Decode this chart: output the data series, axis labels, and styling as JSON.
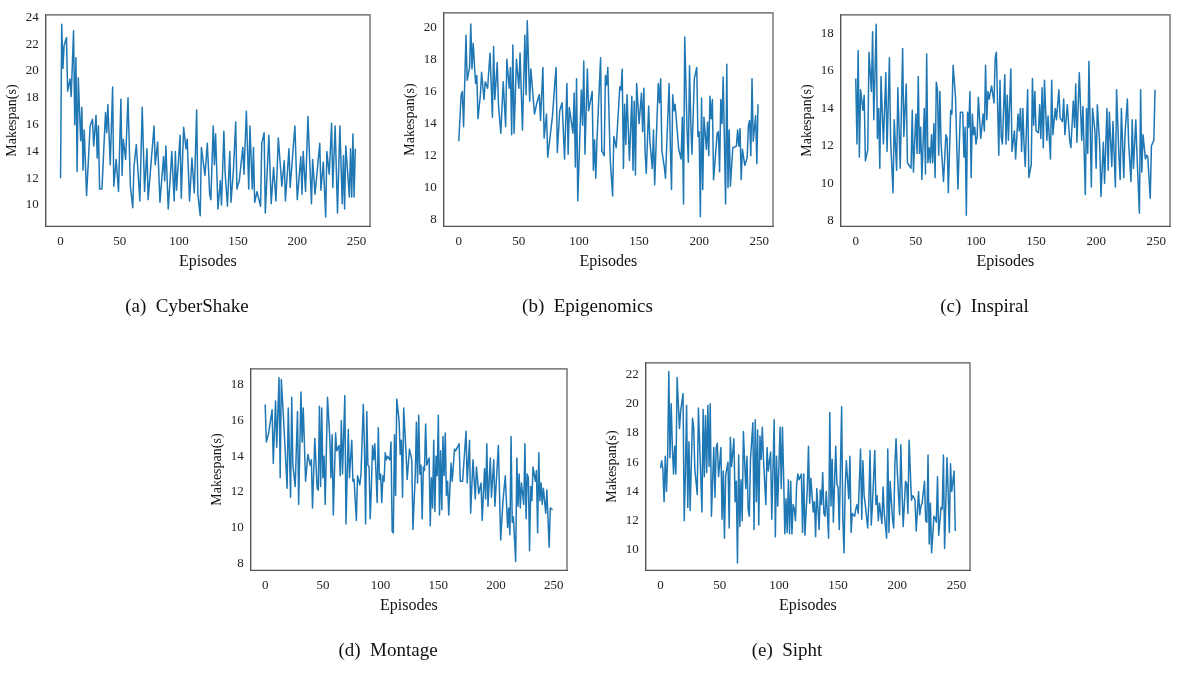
{
  "chart_data": [
    {
      "type": "line",
      "title": "(a)  CyberShake",
      "xlabel": "Episodes",
      "ylabel": "Makespan(s)",
      "color": "#1f77b4",
      "xlim": [
        -12.45,
        261.45
      ],
      "xticks": [
        0,
        50,
        100,
        150,
        200,
        250
      ],
      "ylim": [
        8.4,
        24.2
      ],
      "yticks": [
        10,
        12,
        14,
        16,
        18,
        20,
        22,
        24
      ],
      "grid": false,
      "legend": false,
      "x": [
        0,
        1,
        2,
        3,
        5,
        6,
        8,
        9,
        11,
        12,
        13,
        14,
        15,
        17,
        18,
        19,
        20,
        22,
        25,
        27,
        28,
        30,
        31,
        32,
        33,
        35,
        38,
        39,
        40,
        42,
        44,
        45,
        47,
        49,
        51,
        52,
        53,
        55,
        57,
        59,
        61,
        62,
        64,
        67,
        69,
        71,
        73,
        74,
        79,
        80,
        82,
        84,
        87,
        88,
        89,
        91,
        93,
        94,
        96,
        97,
        98,
        101,
        102,
        104,
        106,
        107,
        109,
        111,
        113,
        115,
        116,
        118,
        119,
        122,
        124,
        126,
        127,
        129,
        130,
        131,
        133,
        135,
        136,
        138,
        139,
        141,
        143,
        144,
        146,
        148,
        149,
        151,
        154,
        155,
        157,
        159,
        160,
        162,
        163,
        164,
        166,
        169,
        170,
        172,
        173,
        176,
        178,
        180,
        182,
        184,
        187,
        189,
        190,
        193,
        194,
        198,
        200,
        203,
        204,
        205,
        207,
        209,
        212,
        213,
        215,
        219,
        220,
        222,
        224,
        225,
        227,
        229,
        230,
        232,
        234,
        236,
        238,
        239,
        240,
        241,
        244,
        245,
        246,
        247,
        248,
        249
      ],
      "values": [
        12,
        23.5,
        20.2,
        21.9,
        22.5,
        18.5,
        19.4,
        18.1,
        23,
        16,
        21,
        12.5,
        19.5,
        14.8,
        17.3,
        12.6,
        15.6,
        10.7,
        15.9,
        16.4,
        14.4,
        16.7,
        13.5,
        15.9,
        11.2,
        11.2,
        16.9,
        15.4,
        17.5,
        13,
        18.8,
        11.4,
        13.4,
        11,
        17.9,
        12.2,
        14.9,
        13.4,
        18,
        11.4,
        9.8,
        12.8,
        14.5,
        10.3,
        17.3,
        11,
        14.2,
        10.4,
        15.9,
        13,
        14.7,
        10.2,
        13.6,
        11.8,
        14.4,
        9.7,
        12.5,
        14,
        10.3,
        14,
        11.1,
        15.2,
        10.5,
        15.8,
        14.2,
        14.9,
        10.3,
        13.5,
        10.9,
        17.1,
        10.8,
        9.2,
        14.3,
        12.2,
        14.6,
        10.8,
        10.4,
        15.9,
        13,
        15.3,
        9.7,
        11.8,
        10,
        15.5,
        12.5,
        9.9,
        14,
        10.2,
        12.5,
        16.2,
        11.2,
        11.8,
        14.3,
        12.3,
        17,
        11.2,
        15.9,
        11.2,
        14.3,
        10.2,
        11,
        9.9,
        14.6,
        15.4,
        9.4,
        15.2,
        10.1,
        12.8,
        10.3,
        15,
        11.4,
        13.3,
        10.3,
        14.2,
        11.3,
        15.9,
        10.4,
        13.6,
        10.8,
        14,
        11,
        16.6,
        10.1,
        13.4,
        10.8,
        14.6,
        11.1,
        13.2,
        9.1,
        14,
        12.3,
        16.1,
        11.3,
        15.9,
        9.4,
        15.9,
        10.1,
        13.7,
        9.7,
        14.4,
        10.6,
        14.2,
        10.6,
        15.3,
        10.6,
        14.2
      ]
    },
    {
      "type": "line",
      "title": "(b)  Epigenomics",
      "xlabel": "Episodes",
      "ylabel": "Makespan(s)",
      "color": "#1f77b4",
      "xlim": [
        -12.45,
        261.45
      ],
      "xticks": [
        0,
        50,
        100,
        150,
        200,
        250
      ],
      "ylim": [
        7.6,
        20.9
      ],
      "yticks": [
        8,
        10,
        12,
        14,
        16,
        18,
        20
      ],
      "grid": false,
      "legend": false,
      "x": [
        0,
        2,
        3,
        4,
        6,
        7,
        9,
        10,
        11,
        12,
        14,
        15,
        16,
        18,
        19,
        21,
        22,
        24,
        26,
        28,
        29,
        30,
        32,
        33,
        35,
        37,
        39,
        40,
        42,
        43,
        44,
        45,
        46,
        48,
        50,
        51,
        53,
        55,
        56,
        57,
        59,
        60,
        63,
        65,
        67,
        68,
        70,
        71,
        73,
        74,
        78,
        80,
        81,
        82,
        84,
        86,
        88,
        90,
        91,
        92,
        95,
        96,
        97,
        98,
        99,
        102,
        103,
        104,
        105,
        107,
        108,
        111,
        112,
        113,
        114,
        115,
        118,
        119,
        121,
        122,
        123,
        124,
        126,
        128,
        129,
        131,
        134,
        135,
        136,
        137,
        138,
        139,
        140,
        142,
        144,
        145,
        146,
        147,
        148,
        150,
        152,
        153,
        154,
        155,
        156,
        158,
        159,
        161,
        162,
        163,
        166,
        167,
        168,
        169,
        171,
        172,
        175,
        176,
        177,
        178,
        179,
        180,
        183,
        185,
        186,
        187,
        188,
        190,
        191,
        192,
        193,
        194,
        196,
        198,
        199,
        200,
        201,
        202,
        203,
        204,
        206,
        207,
        208,
        209,
        210,
        211,
        212,
        215,
        216,
        217,
        218,
        219,
        220,
        222,
        223,
        224,
        225,
        226,
        228,
        231,
        232,
        233,
        234,
        235,
        236,
        238,
        240,
        241,
        242,
        243,
        244,
        245,
        247,
        248,
        249
      ],
      "values": [
        12.9,
        15.8,
        16,
        13.8,
        19.5,
        16.7,
        17.5,
        20.2,
        17.4,
        19,
        16.5,
        17,
        14.3,
        15.8,
        17.2,
        15.5,
        16.6,
        16.2,
        18.4,
        14.4,
        18.8,
        15.5,
        17.8,
        15.2,
        13.4,
        16.6,
        13.8,
        18,
        16.2,
        17.5,
        13.3,
        18.9,
        13.4,
        18,
        16.2,
        18.4,
        13.6,
        19.5,
        15.8,
        20.4,
        15.4,
        17.4,
        14.6,
        15.3,
        15.8,
        14.2,
        17.5,
        13.1,
        14.6,
        11.9,
        14.5,
        16.6,
        17.5,
        12.2,
        14.8,
        15.3,
        11.8,
        16.5,
        12.1,
        15,
        13.4,
        15.9,
        11.3,
        16.8,
        9.2,
        16.1,
        13.9,
        17.9,
        12.1,
        17.4,
        14.8,
        16,
        11.1,
        13,
        10.6,
        13,
        18.1,
        12.3,
        12,
        17,
        16.4,
        17.5,
        11.8,
        9.5,
        13.2,
        12.5,
        16.3,
        16.1,
        17.4,
        11.2,
        15.2,
        12.7,
        15.8,
        11.7,
        15.7,
        11.1,
        15.4,
        10.8,
        16.5,
        14,
        15.9,
        13.5,
        16.2,
        12.3,
        10.9,
        15.1,
        12.9,
        11.2,
        13.6,
        10.2,
        16.5,
        15.3,
        16.8,
        12.3,
        11.3,
        10.6,
        16.5,
        12.7,
        9.9,
        15.8,
        14.8,
        15.2,
        12.4,
        11.8,
        14.4,
        9,
        19.4,
        13.5,
        11.6,
        17.6,
        14.2,
        12.1,
        16.8,
        17.5,
        13.2,
        13.5,
        8.2,
        15.6,
        9.9,
        14.4,
        12.4,
        14.1,
        12,
        15.7,
        14.3,
        15.5,
        10.5,
        13.4,
        13.5,
        11,
        15.5,
        14,
        16.9,
        9,
        17.7,
        10,
        13.6,
        10.1,
        12.5,
        12.6,
        13.6,
        12.6,
        13.7,
        10.5,
        12.4,
        11.4,
        11.9,
        13.9,
        14.2,
        12,
        16.8,
        12.9,
        14.5,
        11.5,
        15.2
      ]
    },
    {
      "type": "line",
      "title": "(c)  Inspiral",
      "xlabel": "Episodes",
      "ylabel": "Makespan(s)",
      "color": "#1f77b4",
      "xlim": [
        -12.45,
        261.45
      ],
      "xticks": [
        0,
        50,
        100,
        150,
        200,
        250
      ],
      "ylim": [
        7.7,
        19.0
      ],
      "yticks": [
        8,
        10,
        12,
        14,
        16,
        18
      ],
      "grid": false,
      "legend": false,
      "x": [
        0,
        1,
        2,
        3,
        4,
        6,
        7,
        8,
        10,
        11,
        13,
        14,
        15,
        17,
        18,
        19,
        20,
        21,
        23,
        25,
        26,
        28,
        29,
        31,
        32,
        34,
        35,
        37,
        39,
        40,
        42,
        43,
        46,
        47,
        48,
        50,
        51,
        52,
        53,
        54,
        55,
        57,
        58,
        59,
        60,
        61,
        62,
        63,
        64,
        65,
        66,
        67,
        68,
        69,
        70,
        71,
        73,
        75,
        76,
        77,
        79,
        80,
        81,
        83,
        85,
        87,
        89,
        90,
        91,
        92,
        93,
        94,
        95,
        96,
        97,
        98,
        99,
        100,
        101,
        102,
        104,
        106,
        107,
        108,
        109,
        110,
        111,
        113,
        115,
        116,
        117,
        119,
        120,
        121,
        122,
        124,
        125,
        126,
        127,
        129,
        130,
        132,
        133,
        135,
        136,
        137,
        138,
        139,
        140,
        141,
        143,
        144,
        146,
        147,
        148,
        149,
        150,
        152,
        153,
        154,
        155,
        156,
        157,
        159,
        160,
        162,
        163,
        164,
        166,
        167,
        169,
        170,
        172,
        173,
        174,
        176,
        178,
        179,
        181,
        182,
        183,
        184,
        186,
        188,
        189,
        191,
        192,
        193,
        194,
        196,
        197,
        199,
        200,
        201,
        203,
        204,
        206,
        207,
        209,
        210,
        211,
        213,
        214,
        216,
        217,
        219,
        220,
        221,
        223,
        224,
        226,
        227,
        229,
        230,
        231,
        233,
        234,
        236,
        237,
        238,
        239,
        241,
        242,
        243,
        245,
        246,
        248,
        249
      ],
      "values": [
        15.6,
        12.1,
        17.1,
        11.4,
        15,
        13.9,
        14.7,
        11.2,
        11.8,
        17,
        14.9,
        18.1,
        13.4,
        18.5,
        12.4,
        14,
        10.8,
        15.7,
        12.1,
        15.9,
        11.7,
        16.7,
        12.3,
        9.5,
        13.4,
        10.7,
        15.1,
        10.8,
        17.2,
        12.5,
        15.3,
        11.1,
        10.8,
        13.9,
        10.6,
        13.7,
        11.6,
        15.7,
        11.6,
        13,
        10.2,
        14,
        10.5,
        16.9,
        11.1,
        11.9,
        11.1,
        12.6,
        11.1,
        13.2,
        10.3,
        15.4,
        15,
        11.5,
        14.9,
        12.1,
        10.1,
        12.6,
        12.4,
        9.5,
        13.9,
        13.7,
        16.3,
        14.6,
        9.7,
        13.8,
        13.8,
        11.4,
        13,
        8.3,
        13.8,
        13,
        14.9,
        10.3,
        13.7,
        12.6,
        13,
        12.1,
        12.5,
        14.6,
        12.4,
        13.7,
        12.8,
        16.3,
        13.4,
        14.9,
        14.5,
        15.2,
        14.3,
        16.7,
        17,
        11.5,
        15.5,
        12.5,
        12.1,
        15.8,
        12.1,
        14.7,
        12.3,
        16.1,
        11.7,
        12.8,
        11.3,
        13.7,
        12.8,
        14,
        11.7,
        14,
        12.1,
        10.9,
        15,
        10.3,
        11,
        15.6,
        13.1,
        14.9,
        12.8,
        12.7,
        14.2,
        12.4,
        15.1,
        11.9,
        15.5,
        12.3,
        13.6,
        11.3,
        15.5,
        12.6,
        14,
        13.4,
        15,
        13.5,
        13.3,
        14.5,
        12.6,
        14.2,
        12.3,
        11.9,
        14.4,
        13,
        15.3,
        12.2,
        15.9,
        12.3,
        14.1,
        9.4,
        14,
        11.6,
        16.5,
        9.8,
        14,
        12.8,
        10.8,
        14.2,
        12,
        9.3,
        12.2,
        10,
        14,
        10.7,
        13.8,
        10.9,
        13.3,
        9.8,
        15,
        11.4,
        10.2,
        14,
        10.3,
        12.6,
        14.5,
        12.2,
        10.1,
        13.4,
        10.8,
        13.4,
        11.5,
        8.4,
        15,
        10.6,
        12.6,
        11.3,
        11.5,
        11.4,
        9.2,
        12,
        12.3,
        15
      ]
    },
    {
      "type": "line",
      "title": "(d)  Montage",
      "xlabel": "Episodes",
      "ylabel": "Makespan(s)",
      "color": "#1f77b4",
      "xlim": [
        -12.45,
        261.45
      ],
      "xticks": [
        0,
        50,
        100,
        150,
        200,
        250
      ],
      "ylim": [
        7.6,
        18.9
      ],
      "yticks": [
        8,
        10,
        12,
        14,
        16,
        18
      ],
      "grid": false,
      "legend": false,
      "x": [
        0,
        1,
        3,
        6,
        7,
        9,
        10,
        12,
        13,
        14,
        16,
        19,
        20,
        22,
        23,
        24,
        26,
        28,
        29,
        31,
        32,
        33,
        35,
        37,
        39,
        40,
        41,
        43,
        45,
        46,
        47,
        48,
        49,
        50,
        51,
        52,
        54,
        56,
        57,
        58,
        59,
        61,
        62,
        64,
        65,
        66,
        67,
        69,
        70,
        72,
        73,
        75,
        76,
        77,
        79,
        80,
        82,
        83,
        85,
        86,
        87,
        88,
        89,
        90,
        91,
        92,
        93,
        94,
        95,
        97,
        98,
        99,
        100,
        101,
        102,
        103,
        104,
        105,
        106,
        108,
        109,
        110,
        111,
        112,
        113,
        114,
        116,
        117,
        118,
        119,
        120,
        122,
        123,
        125,
        127,
        128,
        130,
        131,
        132,
        133,
        134,
        135,
        136,
        137,
        138,
        139,
        140,
        142,
        143,
        144,
        145,
        146,
        147,
        148,
        149,
        150,
        151,
        152,
        153,
        154,
        155,
        156,
        157,
        158,
        159,
        161,
        162,
        164,
        165,
        168,
        169,
        171,
        174,
        175,
        177,
        178,
        180,
        182,
        183,
        185,
        187,
        188,
        190,
        191,
        192,
        193,
        195,
        196,
        198,
        199,
        202,
        204,
        206,
        208,
        210,
        211,
        212,
        213,
        214,
        215,
        217,
        218,
        219,
        220,
        221,
        222,
        224,
        225,
        226,
        227,
        228,
        229,
        230,
        231,
        232,
        234,
        235,
        236,
        237,
        238,
        239,
        240,
        241,
        243,
        244,
        246,
        247,
        249
      ],
      "values": [
        16.9,
        14.8,
        15.3,
        16.6,
        13.6,
        17.1,
        14.5,
        18.4,
        12.8,
        18.3,
        16,
        12.2,
        16.7,
        11.7,
        17.3,
        13.5,
        12.3,
        16.5,
        11.3,
        17.6,
        14.8,
        16.7,
        12.6,
        14.1,
        13.5,
        13.8,
        11.1,
        15,
        12.2,
        12.1,
        16.8,
        12.3,
        16.7,
        12.8,
        14,
        11.3,
        17.3,
        15,
        12.8,
        15.2,
        10.7,
        15.3,
        14.3,
        14.6,
        12.9,
        16,
        13,
        17.4,
        10.2,
        15.5,
        12.8,
        14.9,
        12.6,
        12.7,
        10.4,
        12.9,
        12.4,
        13,
        16.9,
        14.5,
        10.2,
        16.5,
        13.5,
        13.4,
        10.5,
        12.3,
        14.6,
        13.8,
        14.7,
        11.4,
        15.6,
        12.7,
        13,
        11.4,
        12.9,
        12.6,
        14.2,
        13.8,
        14,
        13.8,
        14.8,
        9.8,
        9.7,
        15.2,
        11.8,
        17.2,
        16,
        14.1,
        14.9,
        11.7,
        16.7,
        14.2,
        12.7,
        14.4,
        13.8,
        9.9,
        12.9,
        15.9,
        12.5,
        16.3,
        13,
        13.5,
        10.5,
        13.4,
        13.2,
        15.8,
        13.5,
        13.9,
        10.1,
        12.8,
        11.1,
        14.9,
        10.9,
        14,
        12.9,
        16.3,
        10.7,
        14.3,
        11,
        15.1,
        12.9,
        15.3,
        11.8,
        12.6,
        10.7,
        13.6,
        12.6,
        14.4,
        14.3,
        14.7,
        12.6,
        12.6,
        15.4,
        12.5,
        14.9,
        10.8,
        13.8,
        11.6,
        13.4,
        11.9,
        12.5,
        10.4,
        13.3,
        11.6,
        14.7,
        11.2,
        13.9,
        11.7,
        13.8,
        11.2,
        14.6,
        9.3,
        11.5,
        12.9,
        10,
        11.1,
        9.6,
        15.1,
        10.3,
        10.6,
        8.1,
        13.9,
        11.2,
        13,
        11.1,
        12.5,
        11.3,
        14.7,
        10.5,
        13,
        12.8,
        8.7,
        12.3,
        11.5,
        13.4,
        12.6,
        13.2,
        9.7,
        14.2,
        11.5,
        12.5,
        11.3,
        12.2,
        10.8,
        12.1,
        8.9,
        11.1,
        11
      ]
    },
    {
      "type": "line",
      "title": "(e)  Sipht",
      "xlabel": "Episodes",
      "ylabel": "Makespan(s)",
      "color": "#1f77b4",
      "xlim": [
        -12.45,
        261.45
      ],
      "xticks": [
        0,
        50,
        100,
        150,
        200,
        250
      ],
      "ylim": [
        8.6,
        22.8
      ],
      "yticks": [
        10,
        12,
        14,
        16,
        18,
        20,
        22
      ],
      "grid": false,
      "legend": false,
      "x": [
        0,
        1,
        2,
        3,
        4,
        5,
        6,
        7,
        8,
        9,
        10,
        11,
        12,
        13,
        14,
        16,
        17,
        19,
        20,
        21,
        22,
        23,
        24,
        25,
        27,
        28,
        29,
        31,
        32,
        34,
        35,
        36,
        37,
        38,
        39,
        40,
        41,
        42,
        43,
        45,
        46,
        47,
        48,
        49,
        51,
        52,
        53,
        54,
        55,
        57,
        58,
        59,
        60,
        62,
        63,
        64,
        65,
        66,
        67,
        68,
        69,
        70,
        72,
        73,
        74,
        75,
        76,
        78,
        79,
        80,
        81,
        82,
        83,
        84,
        85,
        86,
        87,
        89,
        90,
        91,
        93,
        94,
        96,
        97,
        98,
        99,
        101,
        102,
        103,
        104,
        105,
        106,
        107,
        108,
        109,
        110,
        111,
        112,
        113,
        114,
        115,
        116,
        117,
        119,
        120,
        121,
        122,
        124,
        125,
        126,
        127,
        129,
        130,
        131,
        132,
        134,
        135,
        136,
        137,
        138,
        139,
        140,
        142,
        143,
        144,
        145,
        146,
        148,
        149,
        150,
        151,
        153,
        154,
        155,
        156,
        157,
        159,
        160,
        161,
        162,
        164,
        165,
        166,
        167,
        169,
        170,
        171,
        172,
        173,
        175,
        176,
        177,
        178,
        179,
        181,
        182,
        183,
        184,
        185,
        187,
        188,
        189,
        191,
        192,
        193,
        194,
        196,
        197,
        198,
        199,
        200,
        202,
        203,
        204,
        205,
        207,
        208,
        209,
        210,
        212,
        213,
        214,
        215,
        216,
        218,
        219,
        220,
        221,
        223,
        224,
        225,
        226,
        227,
        228,
        229,
        231,
        232,
        233,
        234,
        235,
        237,
        238,
        239,
        240,
        242,
        243,
        244,
        245,
        246,
        248,
        249
      ],
      "values": [
        15.6,
        16.1,
        15.5,
        13.3,
        16.4,
        14,
        16.4,
        22.2,
        16.3,
        20,
        17,
        15.2,
        17.1,
        15.2,
        21.8,
        18.3,
        19.5,
        20.7,
        12,
        15.2,
        19.9,
        12.9,
        17.4,
        12.7,
        19,
        18.4,
        15.5,
        13.8,
        19.7,
        15,
        12.6,
        19.6,
        15,
        19.2,
        15.3,
        19.9,
        15.7,
        20,
        12.3,
        17,
        13.6,
        17,
        17.3,
        15,
        17,
        12.1,
        15.4,
        10.8,
        15.1,
        16,
        11.5,
        17.7,
        15.7,
        17.6,
        13.3,
        14.7,
        9.1,
        16.5,
        11.6,
        14.8,
        12,
        18.1,
        14.2,
        16.4,
        12.8,
        12.3,
        16.2,
        18.7,
        11.4,
        18.9,
        13.3,
        18.2,
        11.7,
        17.8,
        16.2,
        18.4,
        16.1,
        13.1,
        17,
        15.4,
        16.7,
        12.1,
        18.9,
        10.9,
        16.4,
        13,
        18.4,
        14.2,
        18.4,
        15,
        11.1,
        13.5,
        11.2,
        14.8,
        11.1,
        14.7,
        11.1,
        13.1,
        12.8,
        12,
        14.5,
        15.2,
        14.8,
        15.2,
        11.2,
        15.2,
        11,
        14.2,
        17.1,
        13.2,
        14.9,
        12.6,
        13.3,
        10.9,
        14.2,
        11.4,
        14.1,
        13.1,
        15.3,
        12.5,
        12.3,
        14,
        10.8,
        19.4,
        13,
        16.2,
        11.9,
        17.1,
        14.5,
        14.3,
        11.4,
        19.8,
        12.2,
        9.8,
        14.3,
        16.1,
        13.5,
        16.4,
        11.2,
        12.5,
        12.3,
        12.8,
        13.1,
        12.5,
        16.9,
        12.1,
        16.1,
        13.7,
        13.1,
        11.5,
        13.3,
        16.8,
        11.7,
        13,
        16.8,
        13.1,
        13.7,
        12,
        13.2,
        11.8,
        14.3,
        12.5,
        10.8,
        16.9,
        11.2,
        14.7,
        12.1,
        11.5,
        15.9,
        17.6,
        15.4,
        12.4,
        17.2,
        14.1,
        11.6,
        14.7,
        14.5,
        12.5,
        17.5,
        13.4,
        13.7,
        13.6,
        13.4,
        11.3,
        14,
        12.4,
        13,
        13.2,
        14.7,
        12,
        11.9,
        16.5,
        10.4,
        13.2,
        9.8,
        12.3,
        12.2,
        11.9,
        15,
        11,
        12.9,
        12.8,
        16.5,
        10.1,
        16.3,
        14,
        11.2,
        15.9,
        14,
        15.4,
        11.3
      ]
    }
  ]
}
